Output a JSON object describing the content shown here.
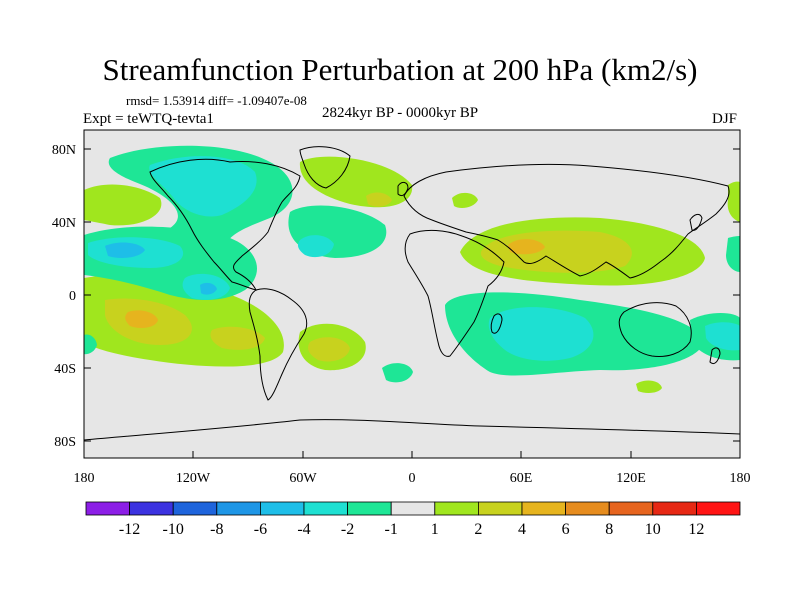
{
  "figure": {
    "title": "Streamfunction Perturbation at 200 hPa (km2/s)",
    "stats": "rmsd= 1.53914 diff= -1.09407e-08",
    "experiment": "Expt = teWTQ-tevta1",
    "period": "2824kyr BP - 0000kyr BP",
    "season": "DJF"
  },
  "map": {
    "lat_ticks": [
      "80N",
      "40N",
      "0",
      "40S",
      "80S"
    ],
    "lon_ticks": [
      "180",
      "120W",
      "60W",
      "0",
      "60E",
      "120E",
      "180"
    ],
    "background_color": "#e6e6e6"
  },
  "colorbar": {
    "labels": [
      "-12",
      "-10",
      "-8",
      "-6",
      "-4",
      "-2",
      "-1",
      "1",
      "2",
      "4",
      "6",
      "8",
      "10",
      "12"
    ],
    "colors": [
      "#8c1ee6",
      "#3c32e0",
      "#1e64dc",
      "#1e96e6",
      "#1ebee8",
      "#1ee0d2",
      "#1ee696",
      "#e6e6e6",
      "#a0e61e",
      "#c8d21e",
      "#e6b41e",
      "#e68c1e",
      "#e6641e",
      "#e62814",
      "#ff1414"
    ]
  }
}
